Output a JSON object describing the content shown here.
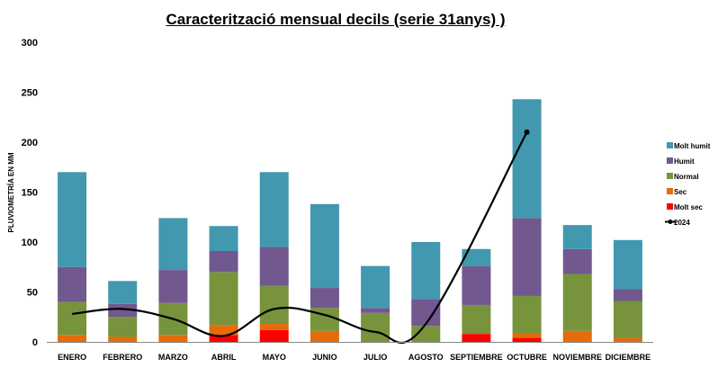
{
  "chart_data": {
    "type": "bar",
    "stacked": true,
    "title": "Caracterització mensual decils (serie 31anys) )",
    "ylabel": "PLUVIOMETRÍA EN MM",
    "xlabel": "",
    "ylim": [
      0,
      300
    ],
    "yticks": [
      0,
      50,
      100,
      150,
      200,
      250,
      300
    ],
    "grid": false,
    "legend_position": "right",
    "categories": [
      "ENERO",
      "FEBRERO",
      "MARZO",
      "ABRIL",
      "MAYO",
      "JUNIO",
      "JULIO",
      "AGOSTO",
      "SEPTIEMBRE",
      "OCTUBRE",
      "NOVIEMBRE",
      "DICIEMBRE"
    ],
    "series": [
      {
        "name": "Molt sec",
        "color": "#ff0000",
        "values": [
          0,
          0,
          0,
          7,
          12,
          0,
          0,
          0,
          8,
          4,
          0,
          0
        ]
      },
      {
        "name": "Sec",
        "color": "#e46c0a",
        "values": [
          7,
          5,
          7,
          10,
          6,
          11,
          0,
          0,
          0,
          5,
          11,
          4
        ]
      },
      {
        "name": "Normal",
        "color": "#77933c",
        "values": [
          33,
          20,
          32,
          53,
          38,
          23,
          29,
          16,
          29,
          37,
          57,
          37
        ]
      },
      {
        "name": "Humit",
        "color": "#71588f",
        "values": [
          35,
          13,
          33,
          21,
          39,
          20,
          5,
          27,
          39,
          78,
          25,
          12
        ]
      },
      {
        "name": "Molt humit",
        "color": "#4198af",
        "values": [
          95,
          23,
          52,
          25,
          75,
          84,
          42,
          57,
          17,
          119,
          24,
          49
        ]
      }
    ],
    "line_series": {
      "name": "2024",
      "color": "#000000",
      "values": [
        28,
        33,
        23,
        6,
        33,
        27,
        10,
        18,
        null,
        210,
        null,
        null
      ]
    },
    "legend_order": [
      "Molt humit",
      "Humit",
      "Normal",
      "Sec",
      "Molt sec",
      "2024"
    ]
  }
}
